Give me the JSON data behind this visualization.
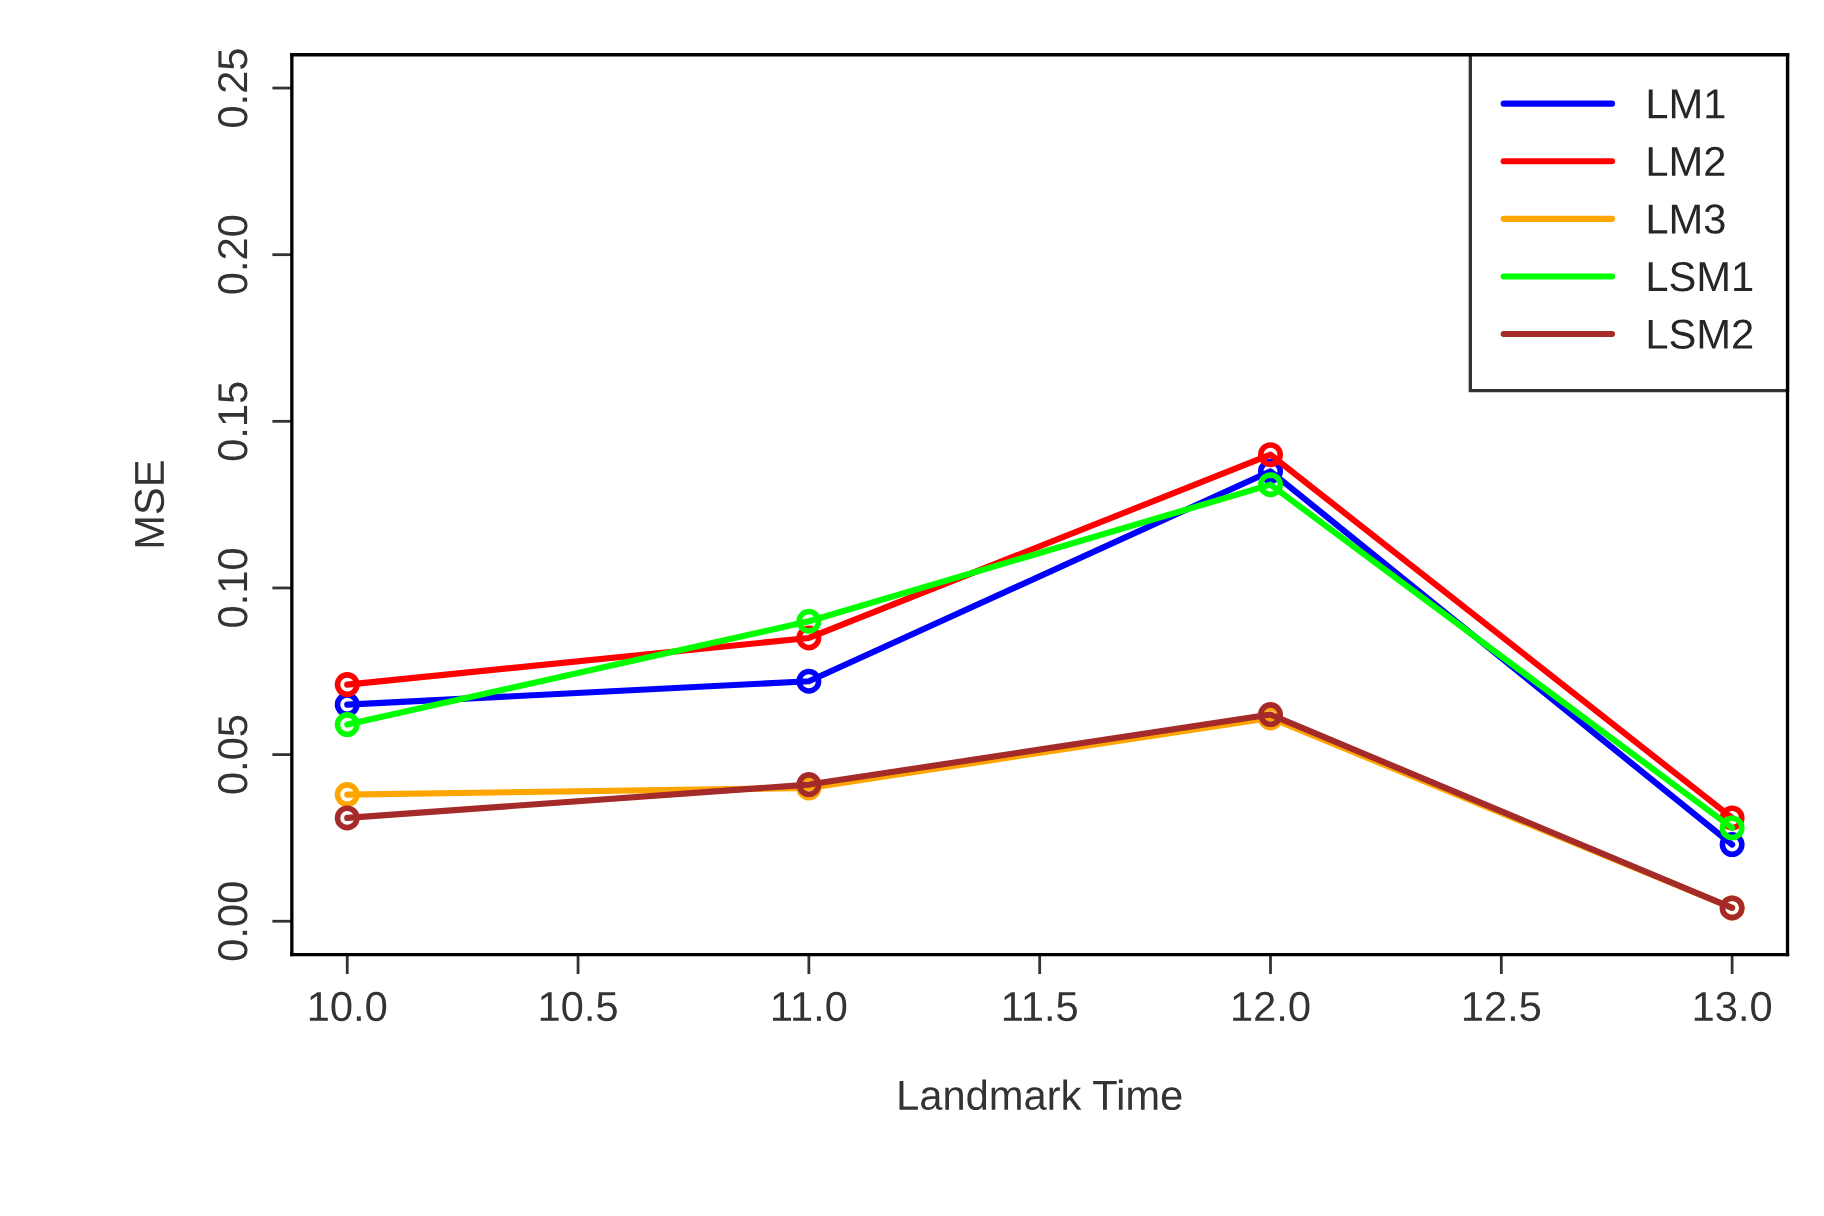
{
  "chart_data": {
    "type": "line",
    "xlabel": "Landmark Time",
    "ylabel": "MSE",
    "x": [
      10,
      11,
      12,
      13
    ],
    "series": [
      {
        "name": "LM1",
        "color": "#0000ff",
        "values": [
          0.065,
          0.072,
          0.135,
          0.023
        ]
      },
      {
        "name": "LM2",
        "color": "#ff0000",
        "values": [
          0.071,
          0.085,
          0.14,
          0.031
        ]
      },
      {
        "name": "LM3",
        "color": "#ffa500",
        "values": [
          0.038,
          0.04,
          0.061,
          0.004
        ]
      },
      {
        "name": "LSM1",
        "color": "#00ff00",
        "values": [
          0.059,
          0.09,
          0.131,
          0.028
        ]
      },
      {
        "name": "LSM2",
        "color": "#a52a2a",
        "values": [
          0.031,
          0.041,
          0.062,
          0.004
        ]
      }
    ],
    "xlim": [
      9.88,
      13.12
    ],
    "ylim": [
      -0.01,
      0.26
    ],
    "xticks": [
      {
        "value": 10,
        "label": "10.0"
      },
      {
        "value": 10.5,
        "label": "10.5"
      },
      {
        "value": 11,
        "label": "11.0"
      },
      {
        "value": 11.5,
        "label": "11.5"
      },
      {
        "value": 12,
        "label": "12.0"
      },
      {
        "value": 12.5,
        "label": "12.5"
      },
      {
        "value": 13,
        "label": "13.0"
      }
    ],
    "yticks": [
      {
        "value": 0,
        "label": "0.00"
      },
      {
        "value": 0.05,
        "label": "0.05"
      },
      {
        "value": 0.1,
        "label": "0.10"
      },
      {
        "value": 0.15,
        "label": "0.15"
      },
      {
        "value": 0.2,
        "label": "0.20"
      },
      {
        "value": 0.25,
        "label": "0.25"
      }
    ],
    "marker": "circle",
    "line_style": "solid",
    "legend": "top right",
    "grid": false
  }
}
